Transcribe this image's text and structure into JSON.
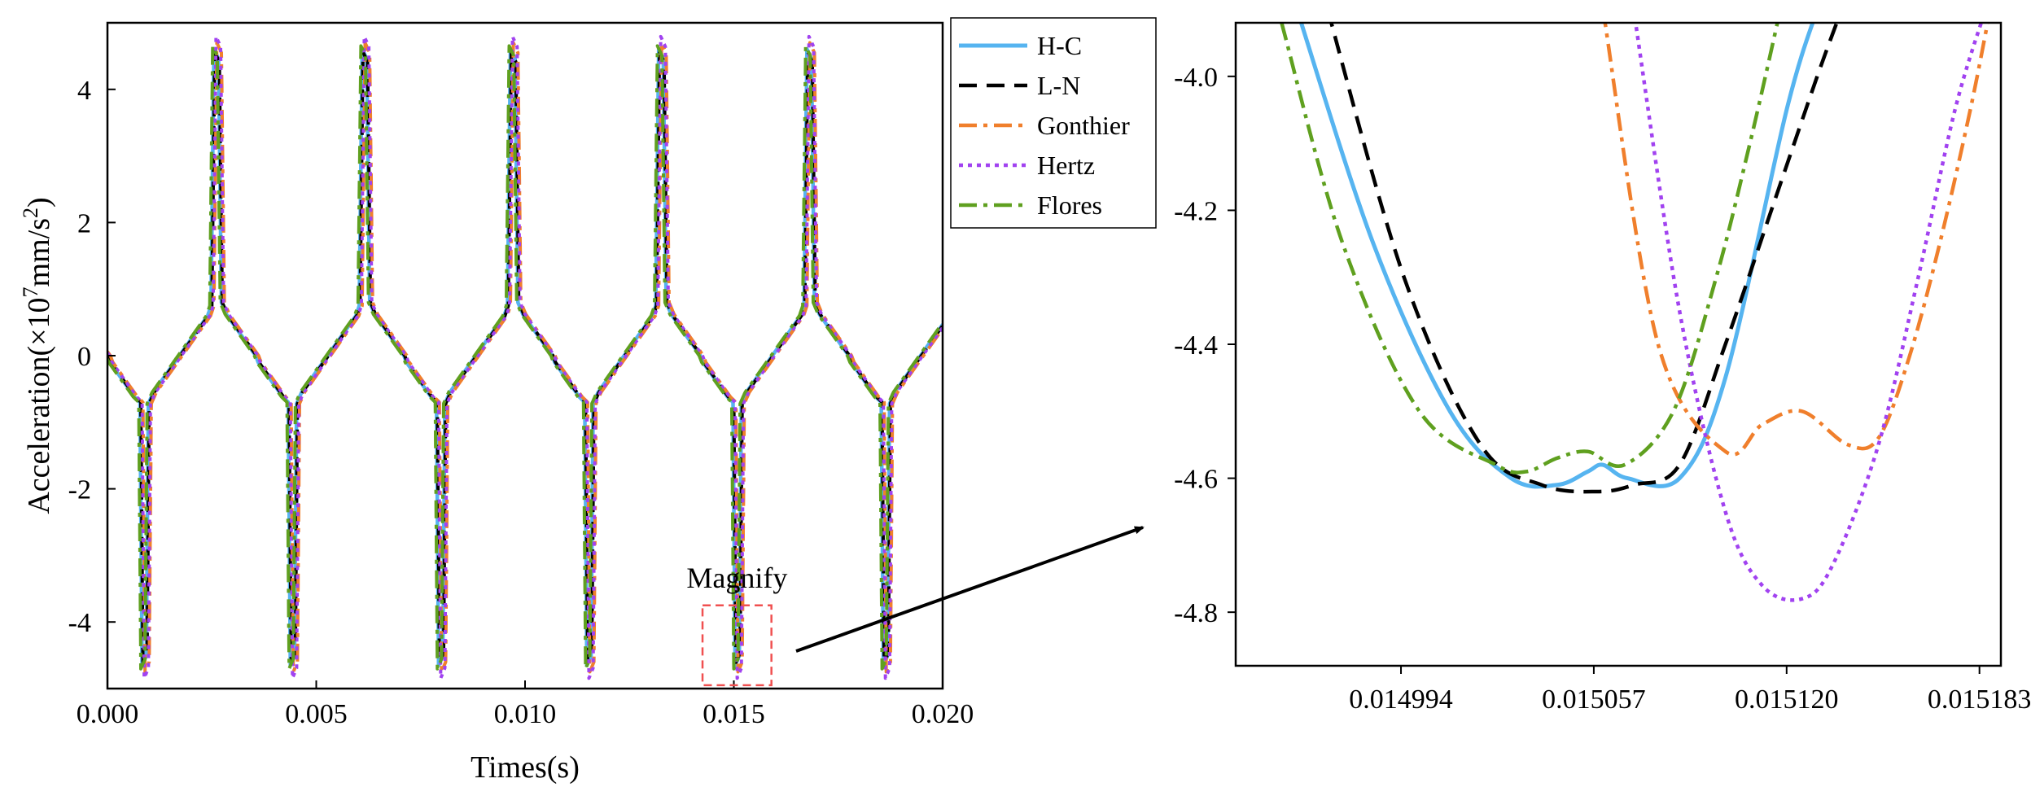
{
  "chart_data": [
    {
      "type": "line",
      "panel": "main",
      "title": "",
      "xlabel": "Times(s)",
      "ylabel_prefix": "Acceleration(×10",
      "ylabel_exp1": "7",
      "ylabel_mid": "mm/s",
      "ylabel_exp2": "2",
      "ylabel_suffix": ")",
      "xlim": [
        0.0,
        0.02
      ],
      "ylim": [
        -5.0,
        5.0
      ],
      "xticks": [
        0.0,
        0.005,
        0.01,
        0.015,
        0.02
      ],
      "xtick_labels": [
        "0.000",
        "0.005",
        "0.010",
        "0.015",
        "0.020"
      ],
      "yticks": [
        -4,
        -2,
        0,
        2,
        4
      ],
      "ytick_labels": [
        "-4",
        "-2",
        "0",
        "2",
        "4"
      ],
      "grid": false,
      "legend_position": "outside right, top",
      "annotation": "Magnify",
      "magnify_box": {
        "x": [
          0.01425,
          0.0159
        ],
        "y": [
          -4.95,
          -3.75
        ]
      },
      "period": 0.00355,
      "profile": [
        [
          0.0,
          0.0
        ],
        [
          6e-05,
          -0.1
        ],
        [
          0.00065,
          -0.62
        ],
        [
          0.00078,
          -0.7
        ],
        [
          0.00083,
          -4.75
        ],
        [
          0.00093,
          -4.6
        ],
        [
          0.00098,
          -0.72
        ],
        [
          0.0011,
          -0.55
        ],
        [
          0.0024,
          0.6
        ],
        [
          0.00248,
          0.75
        ],
        [
          0.00255,
          4.7
        ],
        [
          0.00266,
          4.55
        ],
        [
          0.00273,
          0.8
        ],
        [
          0.00285,
          0.62
        ],
        [
          0.00355,
          0.0
        ]
      ],
      "series": [
        {
          "name": "H-C",
          "color": "#56b4f0",
          "dash": "solid",
          "time_shift": 0.0,
          "peak_scale": 0.98
        },
        {
          "name": "L-N",
          "color": "#000000",
          "dash": "long-dash",
          "time_shift": 2e-05,
          "peak_scale": 0.97
        },
        {
          "name": "Gonthier",
          "color": "#f07f2c",
          "dash": "dash-dot",
          "time_shift": 7e-05,
          "peak_scale": 1.0
        },
        {
          "name": "Hertz",
          "color": "#a142f0",
          "dash": "dot",
          "time_shift": 5e-05,
          "peak_scale": 1.02
        },
        {
          "name": "Flores",
          "color": "#5fa01f",
          "dash": "dash-dot",
          "time_shift": -3e-05,
          "peak_scale": 0.99
        }
      ]
    },
    {
      "type": "line",
      "panel": "zoom",
      "title": "",
      "xlabel": "",
      "ylabel": "",
      "xlim": [
        0.01494,
        0.01519
      ],
      "ylim": [
        -4.88,
        -3.92
      ],
      "xticks": [
        0.014994,
        0.015057,
        0.01512,
        0.015183
      ],
      "xtick_labels": [
        "0.014994",
        "0.015057",
        "0.015120",
        "0.015183"
      ],
      "yticks": [
        -4.0,
        -4.2,
        -4.4,
        -4.6,
        -4.8
      ],
      "ytick_labels": [
        "-4.0",
        "-4.2",
        "-4.4",
        "-4.6",
        "-4.8"
      ],
      "grid": false,
      "series": [
        {
          "name": "H-C",
          "color": "#56b4f0",
          "dash": "solid",
          "x": [
            0.01496,
            0.014985,
            0.01501,
            0.01503,
            0.015045,
            0.015055,
            0.01506,
            0.015068,
            0.015085,
            0.0151,
            0.01512,
            0.01513
          ],
          "y": [
            -3.9,
            -4.25,
            -4.5,
            -4.6,
            -4.61,
            -4.59,
            -4.58,
            -4.6,
            -4.6,
            -4.45,
            -4.05,
            -3.9
          ]
        },
        {
          "name": "L-N",
          "color": "#000000",
          "dash": "long-dash",
          "x": [
            0.01497,
            0.014995,
            0.01502,
            0.01504,
            0.015058,
            0.01507,
            0.015085,
            0.0151,
            0.015115,
            0.01513,
            0.015138
          ],
          "y": [
            -3.9,
            -4.3,
            -4.55,
            -4.61,
            -4.62,
            -4.61,
            -4.58,
            -4.4,
            -4.2,
            -4.0,
            -3.9
          ]
        },
        {
          "name": "Gonthier",
          "color": "#f07f2c",
          "dash": "dash-dot",
          "x": [
            0.01506,
            0.015078,
            0.0151,
            0.015112,
            0.015125,
            0.01514,
            0.01515,
            0.01516,
            0.01517,
            0.01518,
            0.0151865
          ],
          "y": [
            -3.9,
            -4.4,
            -4.56,
            -4.52,
            -4.5,
            -4.55,
            -4.54,
            -4.42,
            -4.25,
            -4.05,
            -3.9
          ]
        },
        {
          "name": "Hertz",
          "color": "#a142f0",
          "dash": "dot",
          "x": [
            0.01507,
            0.015085,
            0.0151,
            0.015112,
            0.015125,
            0.015135,
            0.01515,
            0.015163,
            0.015175,
            0.015185
          ],
          "y": [
            -3.9,
            -4.35,
            -4.65,
            -4.76,
            -4.78,
            -4.73,
            -4.55,
            -4.3,
            -4.05,
            -3.9
          ]
        },
        {
          "name": "Flores",
          "color": "#5fa01f",
          "dash": "dash-dot",
          "x": [
            0.014955,
            0.014975,
            0.015,
            0.015025,
            0.015035,
            0.015045,
            0.015055,
            0.015067,
            0.015083,
            0.015097,
            0.015108,
            0.015117
          ],
          "y": [
            -3.92,
            -4.25,
            -4.5,
            -4.58,
            -4.59,
            -4.57,
            -4.56,
            -4.58,
            -4.5,
            -4.3,
            -4.1,
            -3.92
          ]
        }
      ]
    }
  ]
}
